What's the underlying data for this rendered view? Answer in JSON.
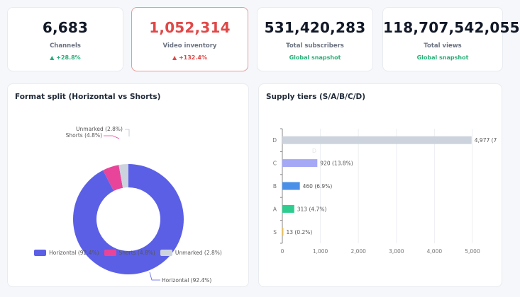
{
  "kpis": [
    {
      "value": "6,683",
      "label": "Channels",
      "delta": "▲ +28.8%",
      "alert": false
    },
    {
      "value": "1,052,314",
      "label": "Video inventory",
      "delta": "▲ +132.4%",
      "alert": true
    },
    {
      "value": "531,420,283",
      "label": "Total subscribers",
      "delta": "Global snapshot",
      "alert": false
    },
    {
      "value": "118,707,542,055",
      "label": "Total views",
      "delta": "Global snapshot",
      "alert": false
    }
  ],
  "chart_data": [
    {
      "type": "pie",
      "title": "Format split (Horizontal vs Shorts)",
      "categories": [
        "Horizontal",
        "Shorts",
        "Unmarked"
      ],
      "values": [
        92.4,
        4.8,
        2.8
      ],
      "labels": [
        "Horizontal (92.4%)",
        "Shorts (4.8%)",
        "Unmarked (2.8%)"
      ],
      "colors": [
        "#5b5fe6",
        "#e8449a",
        "#ccd3dd"
      ],
      "donut": true,
      "legend": "bottom"
    },
    {
      "type": "bar",
      "orientation": "horizontal",
      "title": "Supply tiers (S/A/B/C/D)",
      "categories": [
        "S",
        "A",
        "B",
        "C",
        "D"
      ],
      "values": [
        13,
        313,
        460,
        920,
        4977
      ],
      "data_labels": [
        "13 (0.2%)",
        "313 (4.7%)",
        "460 (6.9%)",
        "920 (13.8%)",
        "4,977 (7"
      ],
      "colors": [
        "#f2c14e",
        "#2ecc8f",
        "#4a8fe8",
        "#a5a8f5",
        "#ccd3dd"
      ],
      "xlim": [
        0,
        5600
      ],
      "xticks": [
        0,
        1000,
        2000,
        3000,
        4000,
        5000
      ],
      "xtick_labels": [
        "0",
        "1,000",
        "2,000",
        "3,000",
        "4,000",
        "5,000"
      ],
      "grid": true,
      "tooltip_ghost": "D"
    }
  ]
}
